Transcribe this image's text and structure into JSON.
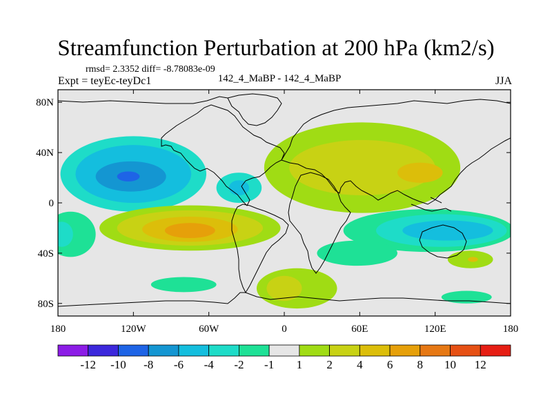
{
  "title": "Streamfunction Perturbation at 200 hPa (km2/s)",
  "stats": "rmsd= 2.3352 diff= -8.78083e-09",
  "experiment": "Expt = teyEc-teyDc1",
  "case_label": "142_4_MaBP - 142_4_MaBP",
  "season": "JJA",
  "colors": {
    "background": "#e6e6e6",
    "coastline": "#000000"
  },
  "map_data": {
    "type": "filled-contour",
    "projection": "cylindrical-equidistant",
    "lon_range": [
      -180,
      180
    ],
    "lat_range": [
      -90,
      90
    ],
    "x_ticks": [
      {
        "lon": -180,
        "label": "180"
      },
      {
        "lon": -120,
        "label": "120W"
      },
      {
        "lon": -60,
        "label": "60W"
      },
      {
        "lon": 0,
        "label": "0"
      },
      {
        "lon": 60,
        "label": "60E"
      },
      {
        "lon": 120,
        "label": "120E"
      },
      {
        "lon": 180,
        "label": "180"
      }
    ],
    "y_ticks": [
      {
        "lat": 80,
        "label": "80N"
      },
      {
        "lat": 40,
        "label": "40N"
      },
      {
        "lat": 0,
        "label": "0"
      },
      {
        "lat": -40,
        "label": "40S"
      },
      {
        "lat": -80,
        "label": "80S"
      }
    ],
    "colorbar": {
      "colors": [
        "#8c1ce6",
        "#3c28dc",
        "#1e64e6",
        "#1496d2",
        "#14bede",
        "#1edcc8",
        "#1ee196",
        "#e6e6e6",
        "#a0dc14",
        "#c8d214",
        "#dcbe0a",
        "#e6a00a",
        "#e67814",
        "#e65014",
        "#e61e14"
      ],
      "levels": [
        "-12",
        "-10",
        "-8",
        "-6",
        "-4",
        "-2",
        "-1",
        "1",
        "2",
        "4",
        "6",
        "8",
        "10",
        "12"
      ]
    },
    "regions": [
      {
        "lon": -120,
        "lat": 23,
        "rlon": 58,
        "rlat": 30,
        "level": -2
      },
      {
        "lon": -120,
        "lat": 23,
        "rlon": 46,
        "rlat": 23,
        "level": -4
      },
      {
        "lon": -122,
        "lat": 21,
        "rlon": 28,
        "rlat": 12,
        "level": -6
      },
      {
        "lon": -124,
        "lat": 21,
        "rlon": 9,
        "rlat": 4,
        "level": -8
      },
      {
        "lon": -36,
        "lat": 12,
        "rlon": 18,
        "rlat": 12,
        "level": -2
      },
      {
        "lon": -36,
        "lat": 12,
        "rlon": 8,
        "rlat": 6,
        "level": -4
      },
      {
        "lon": 62,
        "lat": 28,
        "rlon": 78,
        "rlat": 36,
        "level": 1
      },
      {
        "lon": 62,
        "lat": 28,
        "rlon": 58,
        "rlat": 22,
        "level": 2
      },
      {
        "lon": 108,
        "lat": 24,
        "rlon": 18,
        "rlat": 8,
        "level": 4
      },
      {
        "lon": -75,
        "lat": -20,
        "rlon": 72,
        "rlat": 18,
        "level": 1
      },
      {
        "lon": -75,
        "lat": -20,
        "rlon": 58,
        "rlat": 14,
        "level": 2
      },
      {
        "lon": -75,
        "lat": -21,
        "rlon": 38,
        "rlat": 10,
        "level": 4
      },
      {
        "lon": -75,
        "lat": -22,
        "rlon": 20,
        "rlat": 6,
        "level": 6
      },
      {
        "lon": -170,
        "lat": -25,
        "rlon": 20,
        "rlat": 18,
        "level": -1
      },
      {
        "lon": -177,
        "lat": -25,
        "rlon": 9,
        "rlat": 10,
        "level": -2
      },
      {
        "lon": 115,
        "lat": -22,
        "rlon": 68,
        "rlat": 17,
        "level": -1
      },
      {
        "lon": 125,
        "lat": -22,
        "rlon": 52,
        "rlat": 13,
        "level": -2
      },
      {
        "lon": 130,
        "lat": -22,
        "rlon": 36,
        "rlat": 8,
        "level": -4
      },
      {
        "lon": 58,
        "lat": -40,
        "rlon": 32,
        "rlat": 10,
        "level": -1
      },
      {
        "lon": 148,
        "lat": -45,
        "rlon": 18,
        "rlat": 7,
        "level": 1
      },
      {
        "lon": 150,
        "lat": -45,
        "rlon": 4,
        "rlat": 2,
        "level": 4
      },
      {
        "lon": 10,
        "lat": -68,
        "rlon": 32,
        "rlat": 16,
        "level": 1
      },
      {
        "lon": 0,
        "lat": -68,
        "rlon": 14,
        "rlat": 10,
        "level": 2
      },
      {
        "lon": -80,
        "lat": -65,
        "rlon": 26,
        "rlat": 6,
        "level": -1
      },
      {
        "lon": 145,
        "lat": -75,
        "rlon": 20,
        "rlat": 5,
        "level": -1
      }
    ]
  }
}
